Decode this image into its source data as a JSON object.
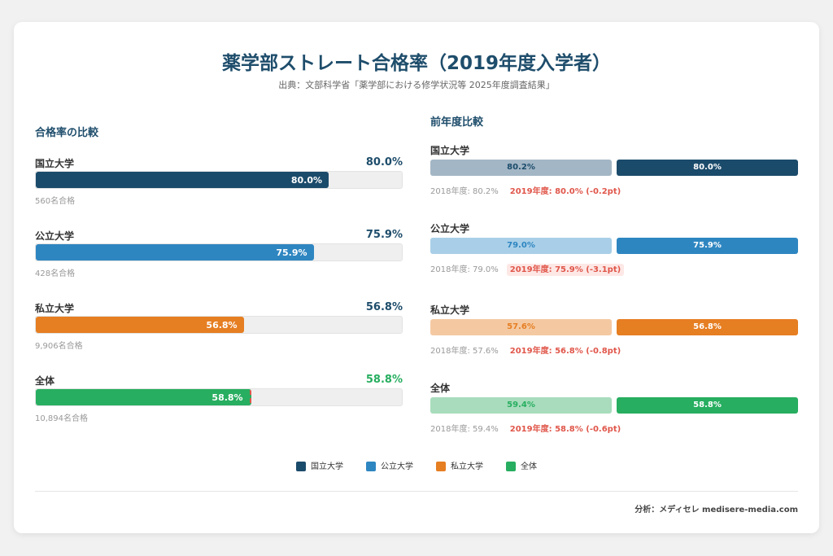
{
  "title": "薬学部ストレート合格率（2019年度入学者）",
  "subtitle": "出典：文部科学省「薬学部における修学状況等 2025年度調査結果」",
  "left_header": "合格率の比較",
  "right_header": "前年度比較",
  "footer": "分析：メディセレ medisere-media.com",
  "chart_data": {
    "type": "bar",
    "title": "薬学部ストレート合格率（2019年度入学者）",
    "categories": [
      "国立大学",
      "公立大学",
      "私立大学",
      "全体"
    ],
    "colors": [
      "#1b4b6b",
      "#2e86c1",
      "#e67e22",
      "#27ae60"
    ],
    "light_colors": [
      "#a3b6c5",
      "#a9cfe8",
      "#f4c9a2",
      "#a8dcbc"
    ],
    "ylim": [
      0,
      100
    ],
    "items": [
      {
        "name": "国立大学",
        "value": 80.0,
        "value_label": "80.0%",
        "count": "560名合格",
        "prev": 80.2,
        "prev_label": "80.2%",
        "prev_note": "2018年度: 80.2%",
        "curr_note": "2019年度: 80.0% (-0.2pt)"
      },
      {
        "name": "公立大学",
        "value": 75.9,
        "value_label": "75.9%",
        "count": "428名合格",
        "prev": 79.0,
        "prev_label": "79.0%",
        "prev_note": "2018年度: 79.0%",
        "curr_note": "2019年度: 75.9% (-3.1pt)"
      },
      {
        "name": "私立大学",
        "value": 56.8,
        "value_label": "56.8%",
        "count": "9,906名合格",
        "prev": 57.6,
        "prev_label": "57.6%",
        "prev_note": "2018年度: 57.6%",
        "curr_note": "2019年度: 56.8% (-0.8pt)"
      },
      {
        "name": "全体",
        "value": 58.8,
        "value_label": "58.8%",
        "count": "10,894名合格",
        "prev": 59.4,
        "prev_label": "59.4%",
        "prev_note": "2018年度: 59.4%",
        "curr_note": "2019年度: 58.8% (-0.6pt)"
      }
    ],
    "legend": [
      "国立大学",
      "公立大学",
      "私立大学",
      "全体"
    ],
    "legend_position": "bottom"
  }
}
